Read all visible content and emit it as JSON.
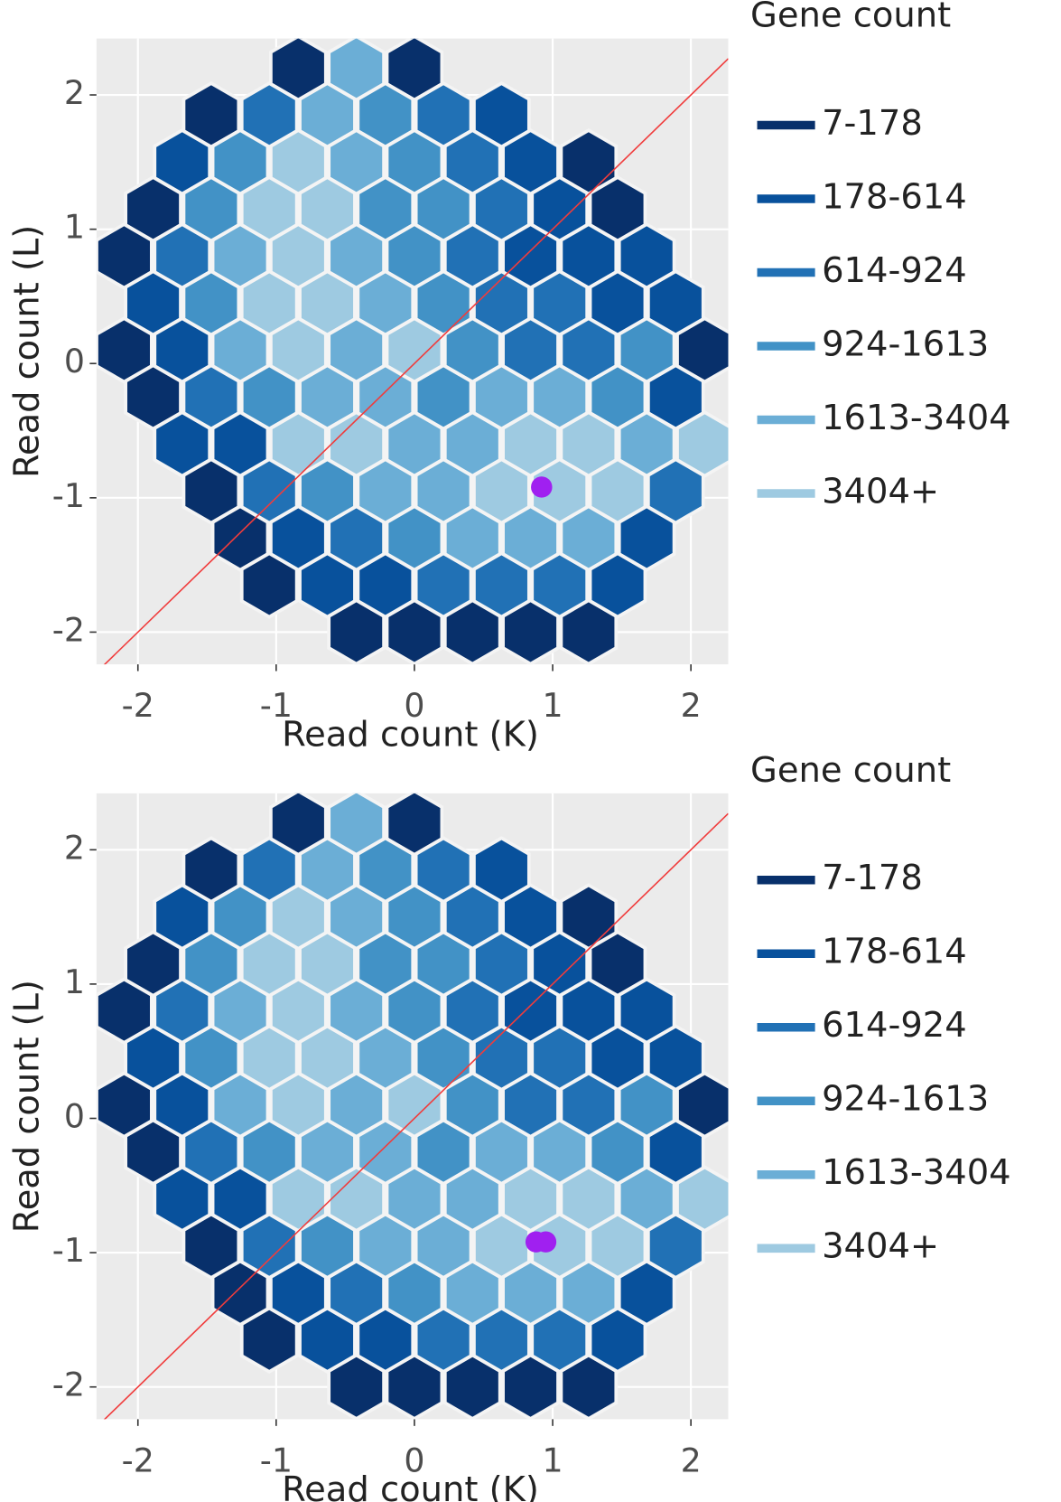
{
  "chart_data": [
    {
      "type": "hexbin",
      "x_label": "Read count (K)",
      "y_label": "Read count (L)",
      "legend_title": "Gene count",
      "xlim": [
        -2.3,
        2.27
      ],
      "ylim": [
        -2.24,
        2.42
      ],
      "xticks": [
        -2,
        -1,
        0,
        1,
        2
      ],
      "yticks": [
        -2,
        -1,
        0,
        1,
        2
      ],
      "grid": true,
      "series": [
        {
          "name": "7-178",
          "color": "#08306b",
          "x": [
            -0.84,
            0,
            -1.47,
            1.26,
            -1.89,
            1.47,
            -2.1,
            -2.1,
            2.1,
            -1.89,
            -1.47,
            -1.26,
            -1.05,
            -0.42,
            0,
            0.42,
            0.84,
            1.26
          ],
          "y": [
            2.2,
            2.2,
            1.85,
            1.5,
            1.15,
            1.15,
            0.8,
            0.1,
            0.1,
            -0.25,
            -0.95,
            -1.3,
            -1.65,
            -2,
            -2,
            -2,
            -2,
            -2
          ]
        },
        {
          "name": "178-614",
          "color": "#08519c",
          "x": [
            0.63,
            -1.68,
            0.84,
            1.05,
            0.84,
            1.26,
            1.68,
            -1.89,
            1.47,
            1.89,
            -1.68,
            1.89,
            -1.68,
            -1.26,
            -0.84,
            1.68,
            -0.63,
            -0.21,
            1.47
          ],
          "y": [
            1.85,
            1.5,
            1.5,
            1.15,
            0.8,
            0.8,
            0.8,
            0.45,
            0.45,
            0.45,
            0.1,
            -0.25,
            -0.6,
            -0.6,
            -1.3,
            -1.3,
            -1.65,
            -1.65,
            -1.65
          ]
        },
        {
          "name": "614-924",
          "color": "#2171b5",
          "x": [
            -1.05,
            0.21,
            0.42,
            0.63,
            -1.68,
            0.42,
            0.63,
            1.05,
            0.84,
            1.26,
            -1.47,
            -1.05,
            1.89,
            -0.42,
            0.21,
            0.63,
            1.05
          ],
          "y": [
            1.85,
            1.85,
            1.5,
            1.15,
            0.8,
            0.8,
            0.45,
            0.45,
            0.1,
            0.1,
            -0.25,
            -0.95,
            -0.95,
            -1.3,
            -1.65,
            -1.65,
            -1.65
          ]
        },
        {
          "name": "924-1613",
          "color": "#4292c6",
          "x": [
            -0.21,
            -1.26,
            0,
            -1.47,
            -0.21,
            0.21,
            0,
            -1.47,
            0.21,
            0.42,
            1.68,
            -1.05,
            0.21,
            1.47,
            -0.63,
            0
          ],
          "y": [
            1.85,
            1.5,
            1.5,
            1.15,
            1.15,
            1.15,
            0.8,
            0.45,
            0.45,
            0.1,
            0.1,
            -0.25,
            -0.25,
            -0.25,
            -0.95,
            -1.3
          ]
        },
        {
          "name": "1613-3404",
          "color": "#6baed6",
          "x": [
            -0.42,
            -0.63,
            -0.42,
            -1.26,
            -0.42,
            -0.21,
            -1.26,
            -0.42,
            -0.63,
            -0.21,
            0.63,
            1.05,
            0,
            0.42,
            1.68,
            -0.21,
            0.21,
            0.42,
            0.84,
            1.26
          ],
          "y": [
            2.2,
            1.85,
            1.5,
            0.8,
            0.8,
            0.45,
            0.1,
            0.1,
            -0.25,
            -0.25,
            -0.25,
            -0.25,
            -0.6,
            -0.6,
            -0.6,
            -0.95,
            -0.95,
            -1.3,
            -1.3,
            -1.3
          ]
        },
        {
          "name": "3404+",
          "color": "#9ecae1",
          "x": [
            -0.84,
            -1.05,
            -0.63,
            -0.84,
            -1.05,
            -0.63,
            -0.84,
            0,
            -0.84,
            -0.42,
            0.84,
            1.26,
            2.1,
            0.63,
            1.05,
            1.47
          ],
          "y": [
            1.5,
            1.15,
            1.15,
            0.8,
            0.45,
            0.45,
            0.1,
            0.1,
            -0.6,
            -0.6,
            -0.6,
            -0.6,
            -0.6,
            -0.95,
            -0.95,
            -0.95
          ]
        }
      ],
      "highlight": {
        "color": "#a020f0",
        "x": [
          0.92
        ],
        "y": [
          -0.92
        ]
      }
    },
    {
      "type": "hexbin",
      "x_label": "Read count (K)",
      "y_label": "Read count (L)",
      "legend_title": "Gene count",
      "xlim": [
        -2.3,
        2.27
      ],
      "ylim": [
        -2.24,
        2.42
      ],
      "xticks": [
        -2,
        -1,
        0,
        1,
        2
      ],
      "yticks": [
        -2,
        -1,
        0,
        1,
        2
      ],
      "grid": true,
      "series": [
        {
          "name": "7-178",
          "color": "#08306b",
          "x": [
            -0.84,
            0,
            -1.47,
            1.26,
            -1.89,
            1.47,
            -2.1,
            -2.1,
            2.1,
            -1.89,
            -1.47,
            -1.26,
            -1.05,
            -0.42,
            0,
            0.42,
            0.84,
            1.26
          ],
          "y": [
            2.2,
            2.2,
            1.85,
            1.5,
            1.15,
            1.15,
            0.8,
            0.1,
            0.1,
            -0.25,
            -0.95,
            -1.3,
            -1.65,
            -2,
            -2,
            -2,
            -2,
            -2
          ]
        },
        {
          "name": "178-614",
          "color": "#08519c",
          "x": [
            0.63,
            -1.68,
            0.84,
            1.05,
            0.84,
            1.26,
            1.68,
            -1.89,
            1.47,
            1.89,
            -1.68,
            1.89,
            -1.68,
            -1.26,
            -0.84,
            1.68,
            -0.63,
            -0.21,
            1.47
          ],
          "y": [
            1.85,
            1.5,
            1.5,
            1.15,
            0.8,
            0.8,
            0.8,
            0.45,
            0.45,
            0.45,
            0.1,
            -0.25,
            -0.6,
            -0.6,
            -1.3,
            -1.3,
            -1.65,
            -1.65,
            -1.65
          ]
        },
        {
          "name": "614-924",
          "color": "#2171b5",
          "x": [
            -1.05,
            0.21,
            0.42,
            0.63,
            -1.68,
            0.42,
            0.63,
            1.05,
            0.84,
            1.26,
            -1.47,
            -1.05,
            1.89,
            -0.42,
            0.21,
            0.63,
            1.05
          ],
          "y": [
            1.85,
            1.85,
            1.5,
            1.15,
            0.8,
            0.8,
            0.45,
            0.45,
            0.1,
            0.1,
            -0.25,
            -0.95,
            -0.95,
            -1.3,
            -1.65,
            -1.65,
            -1.65
          ]
        },
        {
          "name": "924-1613",
          "color": "#4292c6",
          "x": [
            -0.21,
            -1.26,
            0,
            -1.47,
            -0.21,
            0.21,
            0,
            -1.47,
            0.21,
            0.42,
            1.68,
            -1.05,
            0.21,
            1.47,
            -0.63,
            0
          ],
          "y": [
            1.85,
            1.5,
            1.5,
            1.15,
            1.15,
            1.15,
            0.8,
            0.45,
            0.45,
            0.1,
            0.1,
            -0.25,
            -0.25,
            -0.25,
            -0.95,
            -1.3
          ]
        },
        {
          "name": "1613-3404",
          "color": "#6baed6",
          "x": [
            -0.42,
            -0.63,
            -0.42,
            -1.26,
            -0.42,
            -0.21,
            -1.26,
            -0.42,
            -0.63,
            -0.21,
            0.63,
            1.05,
            0,
            0.42,
            1.68,
            -0.21,
            0.21,
            0.42,
            0.84,
            1.26
          ],
          "y": [
            2.2,
            1.85,
            1.5,
            0.8,
            0.8,
            0.45,
            0.1,
            0.1,
            -0.25,
            -0.25,
            -0.25,
            -0.25,
            -0.6,
            -0.6,
            -0.6,
            -0.95,
            -0.95,
            -1.3,
            -1.3,
            -1.3
          ]
        },
        {
          "name": "3404+",
          "color": "#9ecae1",
          "x": [
            -0.84,
            -1.05,
            -0.63,
            -0.84,
            -1.05,
            -0.63,
            -0.84,
            0,
            -0.84,
            -0.42,
            0.84,
            1.26,
            2.1,
            0.63,
            1.05,
            1.47
          ],
          "y": [
            1.5,
            1.15,
            1.15,
            0.8,
            0.45,
            0.45,
            0.1,
            0.1,
            -0.6,
            -0.6,
            -0.6,
            -0.6,
            -0.6,
            -0.95,
            -0.95,
            -0.95
          ]
        }
      ],
      "highlight": {
        "color": "#a020f0",
        "x": [
          0.88,
          0.95
        ],
        "y": [
          -0.92,
          -0.92
        ]
      }
    }
  ]
}
